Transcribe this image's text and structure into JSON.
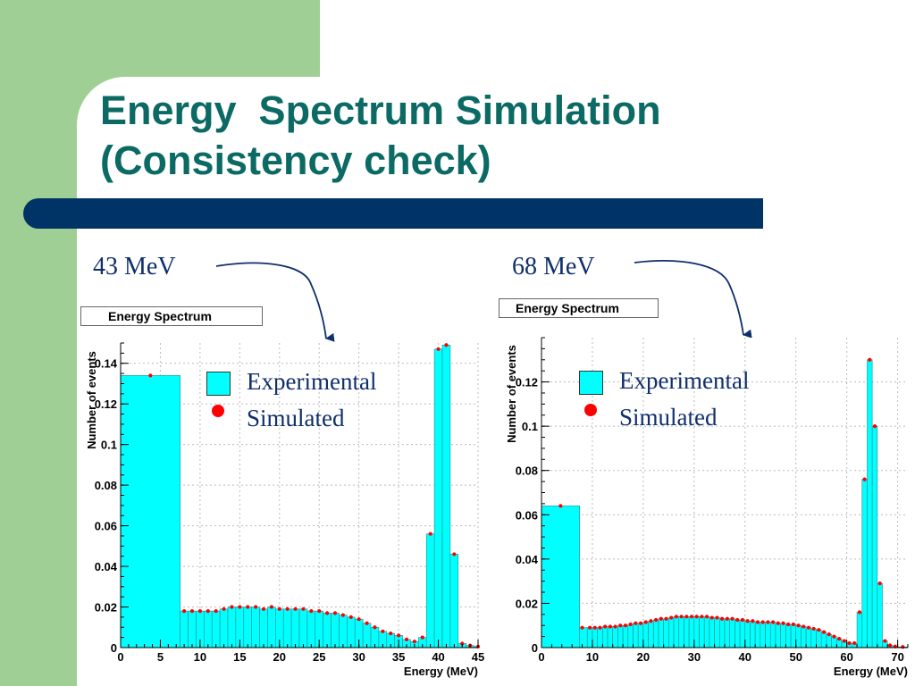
{
  "slide": {
    "title_line1": "Energy  Spectrum Simulation",
    "title_line2": "(Consistency check)"
  },
  "colors": {
    "left_bar": "#9fcf94",
    "band": "#003366",
    "title": "#0b6a64",
    "histogram_fill": "#00ffff",
    "marker": "#ff0000"
  },
  "labels": {
    "left_energy": "43 MeV",
    "right_energy": "68 MeV"
  },
  "legend": {
    "experimental": "Experimental",
    "simulated": "Simulated"
  },
  "chart_data": [
    {
      "type": "bar",
      "title": "Energy Spectrum",
      "xlabel": "Energy (MeV)",
      "ylabel": "Number of events",
      "xlim": [
        0,
        45
      ],
      "ylim": [
        0,
        0.15
      ],
      "grid": true,
      "xticks": [
        "0",
        "5",
        "10",
        "15",
        "20",
        "25",
        "30",
        "35",
        "40",
        "45"
      ],
      "yticks": [
        "0",
        "0.02",
        "0.04",
        "0.06",
        "0.08",
        "0.1",
        "0.12",
        "0.14"
      ],
      "series": [
        {
          "name": "Experimental",
          "bins": [
            [
              0,
              7.5,
              0.134
            ],
            [
              7.5,
              8.5,
              0.018
            ],
            [
              8.5,
              9.5,
              0.018
            ],
            [
              9.5,
              10.5,
              0.018
            ],
            [
              10.5,
              11.5,
              0.018
            ],
            [
              11.5,
              12.5,
              0.018
            ],
            [
              12.5,
              13.5,
              0.019
            ],
            [
              13.5,
              14.5,
              0.02
            ],
            [
              14.5,
              15.5,
              0.02
            ],
            [
              15.5,
              16.5,
              0.02
            ],
            [
              16.5,
              17.5,
              0.02
            ],
            [
              17.5,
              18.5,
              0.019
            ],
            [
              18.5,
              19.5,
              0.02
            ],
            [
              19.5,
              20.5,
              0.019
            ],
            [
              20.5,
              21.5,
              0.019
            ],
            [
              21.5,
              22.5,
              0.019
            ],
            [
              22.5,
              23.5,
              0.019
            ],
            [
              23.5,
              24.5,
              0.018
            ],
            [
              24.5,
              25.5,
              0.018
            ],
            [
              25.5,
              26.5,
              0.017
            ],
            [
              26.5,
              27.5,
              0.017
            ],
            [
              27.5,
              28.5,
              0.016
            ],
            [
              28.5,
              29.5,
              0.015
            ],
            [
              29.5,
              30.5,
              0.014
            ],
            [
              30.5,
              31.5,
              0.012
            ],
            [
              31.5,
              32.5,
              0.01
            ],
            [
              32.5,
              33.5,
              0.008
            ],
            [
              33.5,
              34.5,
              0.007
            ],
            [
              34.5,
              35.5,
              0.006
            ],
            [
              35.5,
              36.5,
              0.004
            ],
            [
              36.5,
              37.5,
              0.003
            ],
            [
              37.5,
              38.5,
              0.005
            ],
            [
              38.5,
              39.5,
              0.056
            ],
            [
              39.5,
              40.5,
              0.147
            ],
            [
              40.5,
              41.5,
              0.149
            ],
            [
              41.5,
              42.5,
              0.046
            ],
            [
              42.5,
              43.5,
              0.002
            ],
            [
              43.5,
              44.5,
              0.001
            ],
            [
              44.5,
              45,
              0.0005
            ]
          ]
        },
        {
          "name": "Simulated",
          "points": [
            [
              3.75,
              0.134
            ],
            [
              8,
              0.018
            ],
            [
              9,
              0.018
            ],
            [
              10,
              0.018
            ],
            [
              11,
              0.018
            ],
            [
              12,
              0.018
            ],
            [
              13,
              0.019
            ],
            [
              14,
              0.02
            ],
            [
              15,
              0.02
            ],
            [
              16,
              0.02
            ],
            [
              17,
              0.02
            ],
            [
              18,
              0.019
            ],
            [
              19,
              0.02
            ],
            [
              20,
              0.019
            ],
            [
              21,
              0.019
            ],
            [
              22,
              0.019
            ],
            [
              23,
              0.019
            ],
            [
              24,
              0.018
            ],
            [
              25,
              0.018
            ],
            [
              26,
              0.017
            ],
            [
              27,
              0.017
            ],
            [
              28,
              0.016
            ],
            [
              29,
              0.015
            ],
            [
              30,
              0.014
            ],
            [
              31,
              0.012
            ],
            [
              32,
              0.01
            ],
            [
              33,
              0.008
            ],
            [
              34,
              0.007
            ],
            [
              35,
              0.006
            ],
            [
              36,
              0.004
            ],
            [
              37,
              0.003
            ],
            [
              38,
              0.005
            ],
            [
              39,
              0.056
            ],
            [
              40,
              0.147
            ],
            [
              41,
              0.149
            ],
            [
              42,
              0.046
            ],
            [
              43,
              0.002
            ],
            [
              44,
              0.001
            ],
            [
              45,
              0.0005
            ]
          ]
        }
      ]
    },
    {
      "type": "bar",
      "title": "Energy Spectrum",
      "xlabel": "Energy (MeV)",
      "ylabel": "Number of events",
      "xlim": [
        0,
        72
      ],
      "ylim": [
        0,
        0.14
      ],
      "grid": true,
      "xticks": [
        "0",
        "10",
        "20",
        "30",
        "40",
        "50",
        "60",
        "70"
      ],
      "yticks": [
        "0",
        "0.02",
        "0.04",
        "0.06",
        "0.08",
        "0.1",
        "0.12"
      ],
      "series": [
        {
          "name": "Experimental",
          "bins": [
            [
              0,
              7.5,
              0.064
            ],
            [
              7.5,
              9,
              0.009
            ],
            [
              9,
              10,
              0.009
            ],
            [
              10,
              11,
              0.009
            ],
            [
              11,
              12,
              0.009
            ],
            [
              12,
              13,
              0.0095
            ],
            [
              13,
              14,
              0.0095
            ],
            [
              14,
              15,
              0.0095
            ],
            [
              15,
              16,
              0.01
            ],
            [
              16,
              17,
              0.01
            ],
            [
              17,
              18,
              0.0105
            ],
            [
              18,
              19,
              0.011
            ],
            [
              19,
              20,
              0.011
            ],
            [
              20,
              21,
              0.0115
            ],
            [
              21,
              22,
              0.012
            ],
            [
              22,
              23,
              0.0125
            ],
            [
              23,
              24,
              0.013
            ],
            [
              24,
              25,
              0.013
            ],
            [
              25,
              26,
              0.0135
            ],
            [
              26,
              27,
              0.014
            ],
            [
              27,
              28,
              0.014
            ],
            [
              28,
              29,
              0.014
            ],
            [
              29,
              30,
              0.014
            ],
            [
              30,
              31,
              0.014
            ],
            [
              31,
              32,
              0.014
            ],
            [
              32,
              33,
              0.014
            ],
            [
              33,
              34,
              0.0135
            ],
            [
              34,
              35,
              0.0135
            ],
            [
              35,
              36,
              0.013
            ],
            [
              36,
              37,
              0.013
            ],
            [
              37,
              38,
              0.013
            ],
            [
              38,
              39,
              0.0125
            ],
            [
              39,
              40,
              0.0125
            ],
            [
              40,
              41,
              0.012
            ],
            [
              41,
              42,
              0.012
            ],
            [
              42,
              43,
              0.0115
            ],
            [
              43,
              44,
              0.0115
            ],
            [
              44,
              45,
              0.0115
            ],
            [
              45,
              46,
              0.0115
            ],
            [
              46,
              47,
              0.011
            ],
            [
              47,
              48,
              0.011
            ],
            [
              48,
              49,
              0.0105
            ],
            [
              49,
              50,
              0.0105
            ],
            [
              50,
              51,
              0.01
            ],
            [
              51,
              52,
              0.0095
            ],
            [
              52,
              53,
              0.009
            ],
            [
              53,
              54,
              0.0085
            ],
            [
              54,
              55,
              0.008
            ],
            [
              55,
              56,
              0.007
            ],
            [
              56,
              57,
              0.006
            ],
            [
              57,
              58,
              0.005
            ],
            [
              58,
              59,
              0.004
            ],
            [
              59,
              60,
              0.003
            ],
            [
              60,
              61,
              0.002
            ],
            [
              61,
              62,
              0.002
            ],
            [
              62,
              63,
              0.016
            ],
            [
              63,
              64,
              0.076
            ],
            [
              64,
              65,
              0.13
            ],
            [
              65,
              66,
              0.1
            ],
            [
              66,
              67,
              0.029
            ],
            [
              67,
              68,
              0.003
            ],
            [
              68,
              69,
              0.001
            ],
            [
              69,
              70,
              0.0005
            ],
            [
              70,
              72,
              0.0003
            ]
          ]
        },
        {
          "name": "Simulated",
          "points": [
            [
              3.75,
              0.064
            ],
            [
              8,
              0.009
            ],
            [
              9.5,
              0.009
            ],
            [
              10.5,
              0.009
            ],
            [
              11.5,
              0.009
            ],
            [
              12.5,
              0.0095
            ],
            [
              13.5,
              0.0095
            ],
            [
              14.5,
              0.0095
            ],
            [
              15.5,
              0.01
            ],
            [
              16.5,
              0.01
            ],
            [
              17.5,
              0.0105
            ],
            [
              18.5,
              0.011
            ],
            [
              19.5,
              0.011
            ],
            [
              20.5,
              0.0115
            ],
            [
              21.5,
              0.012
            ],
            [
              22.5,
              0.0125
            ],
            [
              23.5,
              0.013
            ],
            [
              24.5,
              0.013
            ],
            [
              25.5,
              0.0135
            ],
            [
              26.5,
              0.014
            ],
            [
              27.5,
              0.014
            ],
            [
              28.5,
              0.014
            ],
            [
              29.5,
              0.014
            ],
            [
              30.5,
              0.014
            ],
            [
              31.5,
              0.014
            ],
            [
              32.5,
              0.014
            ],
            [
              33.5,
              0.0135
            ],
            [
              34.5,
              0.0135
            ],
            [
              35.5,
              0.013
            ],
            [
              36.5,
              0.013
            ],
            [
              37.5,
              0.013
            ],
            [
              38.5,
              0.0125
            ],
            [
              39.5,
              0.0125
            ],
            [
              40.5,
              0.012
            ],
            [
              41.5,
              0.012
            ],
            [
              42.5,
              0.0115
            ],
            [
              43.5,
              0.0115
            ],
            [
              44.5,
              0.0115
            ],
            [
              45.5,
              0.0115
            ],
            [
              46.5,
              0.011
            ],
            [
              47.5,
              0.011
            ],
            [
              48.5,
              0.0105
            ],
            [
              49.5,
              0.0105
            ],
            [
              50.5,
              0.01
            ],
            [
              51.5,
              0.0095
            ],
            [
              52.5,
              0.009
            ],
            [
              53.5,
              0.0085
            ],
            [
              54.5,
              0.008
            ],
            [
              55.5,
              0.007
            ],
            [
              56.5,
              0.006
            ],
            [
              57.5,
              0.005
            ],
            [
              58.5,
              0.004
            ],
            [
              59.5,
              0.003
            ],
            [
              60.5,
              0.002
            ],
            [
              61.5,
              0.002
            ],
            [
              62.5,
              0.016
            ],
            [
              63.5,
              0.076
            ],
            [
              64.5,
              0.13
            ],
            [
              65.5,
              0.1
            ],
            [
              66.5,
              0.029
            ],
            [
              67.5,
              0.003
            ],
            [
              68.5,
              0.001
            ],
            [
              69.5,
              0.0005
            ],
            [
              71,
              0.0003
            ]
          ]
        }
      ]
    }
  ]
}
